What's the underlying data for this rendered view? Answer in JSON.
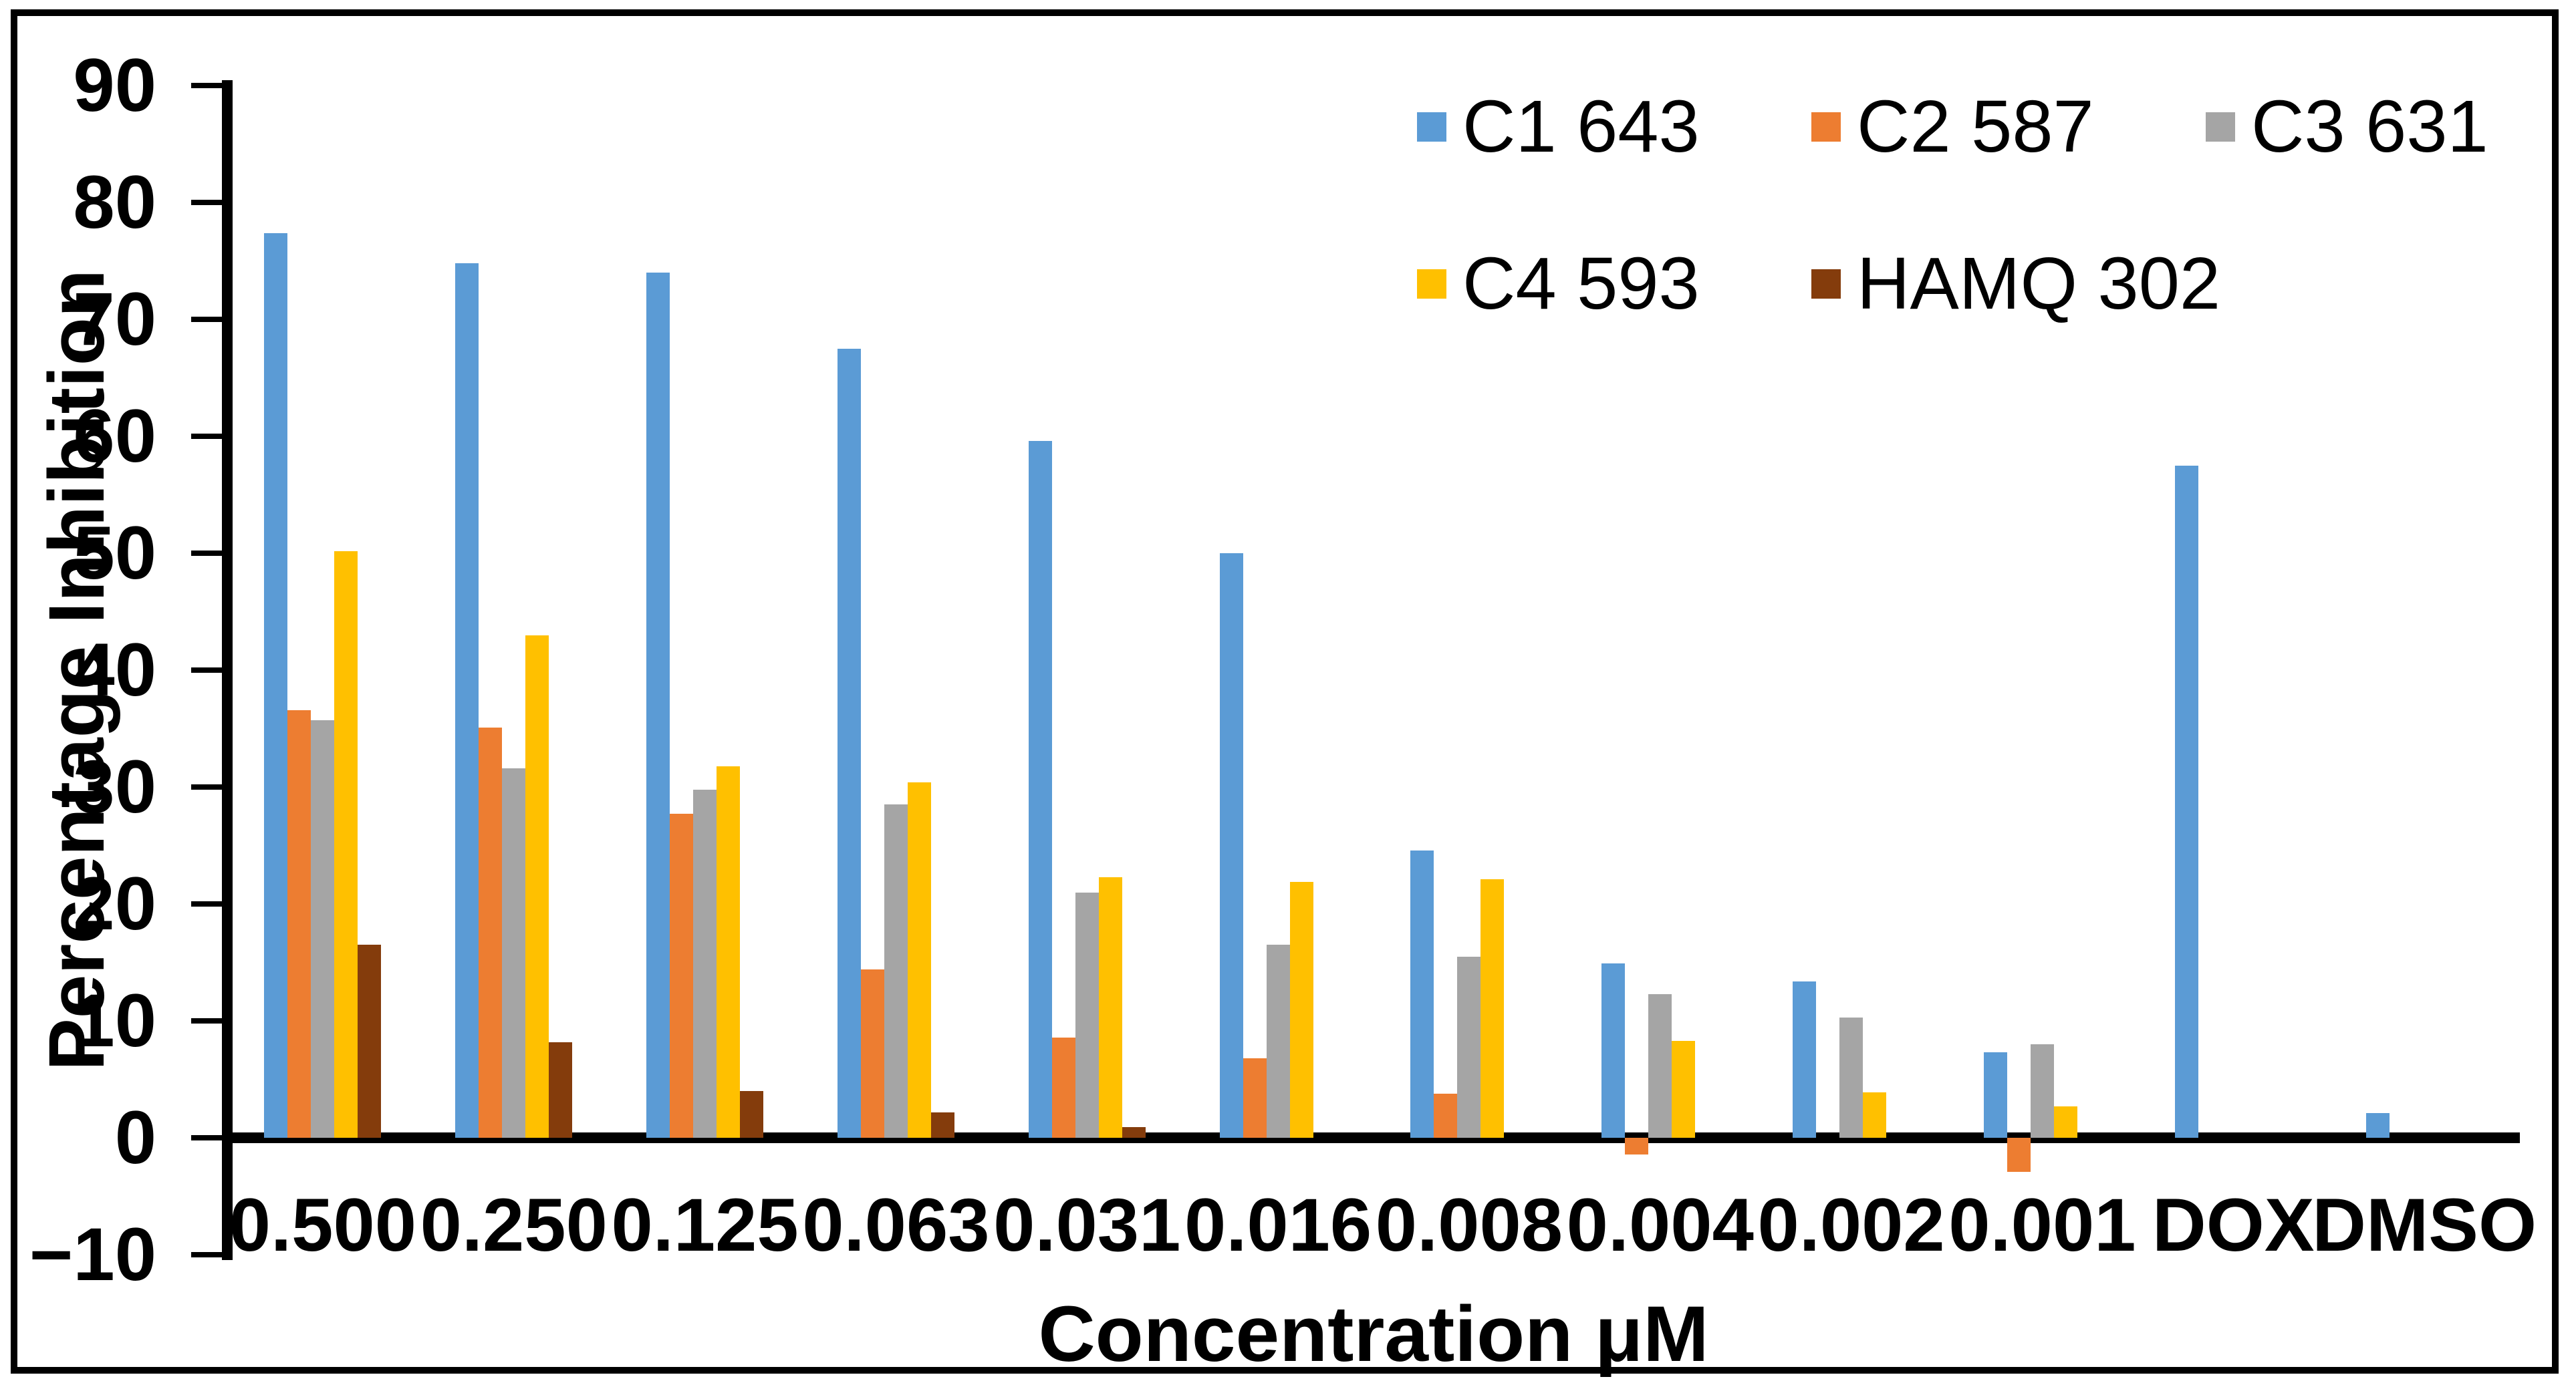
{
  "figure": {
    "y_axis_title": "Percentage Inhibition",
    "x_axis_title": "Concentration μM"
  },
  "colors": {
    "c1": "#5B9BD5",
    "c2": "#ED7D31",
    "c3": "#A5A5A5",
    "c4": "#FFC000",
    "hamq": "#843C0C",
    "axis": "#000000"
  },
  "chart_data": {
    "type": "bar",
    "title": "",
    "xlabel": "Concentration μM",
    "ylabel": "Percentage Inhibition",
    "ylim": [
      -10,
      90
    ],
    "y_ticks": [
      90,
      80,
      70,
      60,
      50,
      40,
      30,
      20,
      10,
      0,
      -10
    ],
    "grid": false,
    "legend_position": "top-right-inside",
    "categories": [
      "0.500",
      "0.250",
      "0.125",
      "0.063",
      "0.031",
      "0.016",
      "0.008",
      "0.004",
      "0.002",
      "0.001",
      "DOX",
      "DMSO"
    ],
    "series": [
      {
        "name": "C1 643",
        "color": "#5B9BD5",
        "values": [
          77.4,
          74.8,
          74.0,
          67.5,
          59.6,
          50.0,
          24.6,
          14.9,
          13.4,
          7.3,
          57.5,
          2.1
        ]
      },
      {
        "name": "C2 587",
        "color": "#ED7D31",
        "values": [
          36.6,
          35.1,
          27.7,
          14.4,
          8.6,
          6.8,
          3.8,
          -1.4,
          0,
          -2.9,
          0,
          0
        ]
      },
      {
        "name": "C3 631",
        "color": "#A5A5A5",
        "values": [
          35.7,
          31.6,
          29.8,
          28.5,
          21.0,
          16.5,
          15.5,
          12.3,
          10.3,
          8.0,
          0,
          0
        ]
      },
      {
        "name": "C4 593",
        "color": "#FFC000",
        "values": [
          50.2,
          43.0,
          31.8,
          30.4,
          22.3,
          21.9,
          22.1,
          8.3,
          3.9,
          2.7,
          0,
          0
        ]
      },
      {
        "name": "HAMQ 302",
        "color": "#843C0C",
        "values": [
          16.5,
          8.2,
          4.0,
          2.2,
          0.9,
          0,
          0,
          0,
          0,
          0,
          0,
          0
        ]
      }
    ],
    "legend_rows": [
      [
        "C1 643",
        "C2 587",
        "C3 631"
      ],
      [
        "C4 593",
        "HAMQ 302"
      ]
    ]
  },
  "layout_values": {
    "note": "geometry only, not content"
  }
}
